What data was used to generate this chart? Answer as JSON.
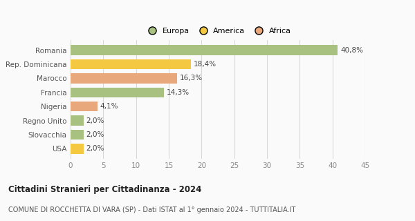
{
  "categories": [
    "Romania",
    "Rep. Dominicana",
    "Marocco",
    "Francia",
    "Nigeria",
    "Regno Unito",
    "Slovacchia",
    "USA"
  ],
  "values": [
    40.8,
    18.4,
    16.3,
    14.3,
    4.1,
    2.0,
    2.0,
    2.0
  ],
  "labels": [
    "40,8%",
    "18,4%",
    "16,3%",
    "14,3%",
    "4,1%",
    "2,0%",
    "2,0%",
    "2,0%"
  ],
  "colors": [
    "#a8c080",
    "#f5c842",
    "#e8a87c",
    "#a8c080",
    "#e8a87c",
    "#a8c080",
    "#a8c080",
    "#f5c842"
  ],
  "legend_items": [
    {
      "label": "Europa",
      "color": "#a8c080"
    },
    {
      "label": "America",
      "color": "#f5c842"
    },
    {
      "label": "Africa",
      "color": "#e8a87c"
    }
  ],
  "xlim": [
    0,
    45
  ],
  "xticks": [
    0,
    5,
    10,
    15,
    20,
    25,
    30,
    35,
    40,
    45
  ],
  "title": "Cittadini Stranieri per Cittadinanza - 2024",
  "subtitle": "COMUNE DI ROCCHETTA DI VARA (SP) - Dati ISTAT al 1° gennaio 2024 - TUTTITALIA.IT",
  "bg_color": "#fafafa",
  "plot_bg_color": "#fafafa",
  "grid_color": "#d8d8d8",
  "bar_height": 0.72,
  "label_fontsize": 7.5,
  "ytick_fontsize": 7.5,
  "xtick_fontsize": 7.5,
  "title_fontsize": 8.5,
  "subtitle_fontsize": 7.0,
  "legend_fontsize": 8.0
}
